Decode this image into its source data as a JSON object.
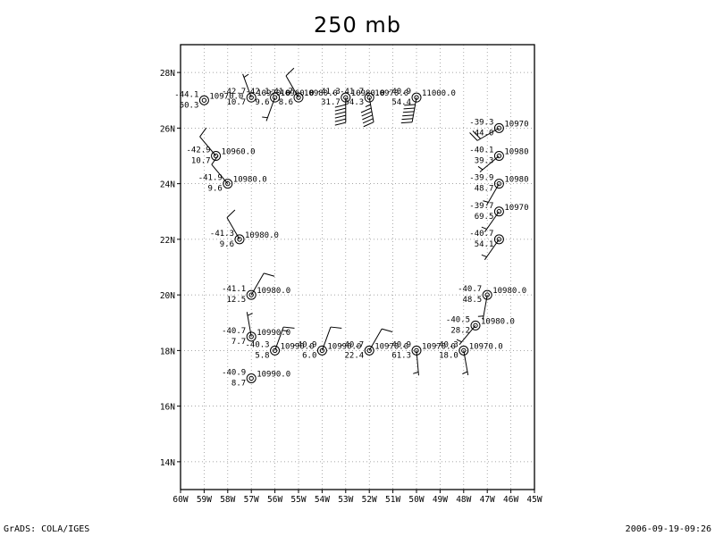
{
  "title": "250 mb",
  "footer": {
    "left": "GrADS: COLA/IGES",
    "right": "2006-09-19-09:26"
  },
  "axes": {
    "lon_range": [
      -60,
      -45
    ],
    "lat_range": [
      13,
      29
    ],
    "x_ticks": [
      "60W",
      "59W",
      "58W",
      "57W",
      "56W",
      "55W",
      "54W",
      "53W",
      "52W",
      "51W",
      "50W",
      "49W",
      "48W",
      "47W",
      "46W",
      "45W"
    ],
    "y_ticks": [
      "14N",
      "16N",
      "18N",
      "20N",
      "22N",
      "24N",
      "26N",
      "28N"
    ],
    "y_tick_values": [
      14,
      16,
      18,
      20,
      22,
      24,
      26,
      28
    ],
    "grid": "dotted"
  },
  "chart_data": {
    "type": "station_plot",
    "level": "250 mb",
    "stations": [
      {
        "lon": -59.0,
        "lat": 27.0,
        "temp": "-44.1",
        "height": "10970.0",
        "bottom": "50.3",
        "wind_dir": 0,
        "wind_spd": 0
      },
      {
        "lon": -57.0,
        "lat": 27.1,
        "temp": "-42.7",
        "height": "10970.0",
        "bottom": "10.7",
        "wind_dir": 340,
        "wind_spd": 5
      },
      {
        "lon": -56.0,
        "lat": 27.1,
        "temp": "-42.1",
        "height": "10960.0",
        "bottom": "9.6",
        "wind_dir": 200,
        "wind_spd": 5
      },
      {
        "lon": -55.0,
        "lat": 27.1,
        "temp": "-41.7",
        "height": "10980.0",
        "bottom": "8.6",
        "wind_dir": 330,
        "wind_spd": 10
      },
      {
        "lon": -53.0,
        "lat": 27.1,
        "temp": "-41.3",
        "height": "10980.0",
        "bottom": "31.7",
        "wind_dir": 180,
        "wind_spd": 60
      },
      {
        "lon": -52.0,
        "lat": 27.1,
        "temp": "-41.7",
        "height": "10970.0",
        "bottom": "54.3",
        "wind_dir": 170,
        "wind_spd": 55
      },
      {
        "lon": -50.0,
        "lat": 27.1,
        "temp": "-40.9",
        "height": "11000.0",
        "bottom": "54.4",
        "wind_dir": 190,
        "wind_spd": 60
      },
      {
        "lon": -58.5,
        "lat": 25.0,
        "temp": "-42.9",
        "height": "10960.0",
        "bottom": "10.7",
        "wind_dir": 320,
        "wind_spd": 10
      },
      {
        "lon": -58.0,
        "lat": 24.0,
        "temp": "-41.9",
        "height": "10980.0",
        "bottom": "9.6",
        "wind_dir": 320,
        "wind_spd": 10
      },
      {
        "lon": -57.5,
        "lat": 22.0,
        "temp": "-41.3",
        "height": "10980.0",
        "bottom": "9.6",
        "wind_dir": 330,
        "wind_spd": 10
      },
      {
        "lon": -57.0,
        "lat": 20.0,
        "temp": "-41.1",
        "height": "10980.0",
        "bottom": "12.5",
        "wind_dir": 30,
        "wind_spd": 10
      },
      {
        "lon": -57.0,
        "lat": 18.5,
        "temp": "-40.7",
        "height": "10990.0",
        "bottom": "7.7",
        "wind_dir": 350,
        "wind_spd": 5
      },
      {
        "lon": -56.0,
        "lat": 18.0,
        "temp": "-40.3",
        "height": "10990.0",
        "bottom": "5.8",
        "wind_dir": 20,
        "wind_spd": 15
      },
      {
        "lon": -57.0,
        "lat": 17.0,
        "temp": "-40.9",
        "height": "10990.0",
        "bottom": "8.7",
        "wind_dir": 0,
        "wind_spd": 0
      },
      {
        "lon": -54.0,
        "lat": 18.0,
        "temp": "-40.9",
        "height": "10990.0",
        "bottom": "6.0",
        "wind_dir": 20,
        "wind_spd": 10
      },
      {
        "lon": -52.0,
        "lat": 18.0,
        "temp": "-40.7",
        "height": "10970.0",
        "bottom": "22.4",
        "wind_dir": 30,
        "wind_spd": 10
      },
      {
        "lon": -50.0,
        "lat": 18.0,
        "temp": "-40.9",
        "height": "10970.0",
        "bottom": "61.3",
        "wind_dir": 175,
        "wind_spd": 5
      },
      {
        "lon": -48.0,
        "lat": 18.0,
        "temp": "-40.3",
        "height": "10970.0",
        "bottom": "18.0",
        "wind_dir": 170,
        "wind_spd": 5
      },
      {
        "lon": -47.5,
        "lat": 18.9,
        "temp": "-40.5",
        "height": "10980.0",
        "bottom": "28.2",
        "wind_dir": 220,
        "wind_spd": 5
      },
      {
        "lon": -47.0,
        "lat": 20.0,
        "temp": "-40.7",
        "height": "10980.0",
        "bottom": "48.5",
        "wind_dir": 190,
        "wind_spd": 5
      },
      {
        "lon": -46.5,
        "lat": 22.0,
        "temp": "-40.7",
        "height": "",
        "bottom": "54.1",
        "wind_dir": 215,
        "wind_spd": 5
      },
      {
        "lon": -46.5,
        "lat": 23.0,
        "temp": "-39.7",
        "height": "10970",
        "bottom": "69.5",
        "wind_dir": 215,
        "wind_spd": 5
      },
      {
        "lon": -46.5,
        "lat": 24.0,
        "temp": "-39.9",
        "height": "10980",
        "bottom": "48.7",
        "wind_dir": 210,
        "wind_spd": 5
      },
      {
        "lon": -46.5,
        "lat": 25.0,
        "temp": "-40.1",
        "height": "10980",
        "bottom": "39.3",
        "wind_dir": 230,
        "wind_spd": 5
      },
      {
        "lon": -46.5,
        "lat": 26.0,
        "temp": "-39.3",
        "height": "10970",
        "bottom": "44.0",
        "wind_dir": 240,
        "wind_spd": 20
      }
    ]
  }
}
